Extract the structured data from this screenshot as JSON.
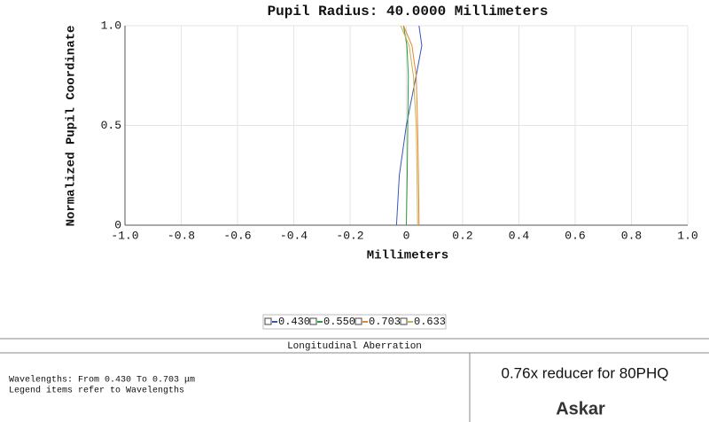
{
  "chart_data": {
    "type": "line",
    "title": "Pupil Radius: 40.0000 Millimeters",
    "x_label": "Millimeters",
    "y_label": "Normalized Pupil Coordinate",
    "y": [
      0,
      0.25,
      0.5,
      0.75,
      0.9,
      1.0
    ],
    "series": [
      {
        "name": "0.430",
        "color": "#3a55c0",
        "values": [
          -0.035,
          -0.025,
          0.0,
          0.035,
          0.055,
          0.045
        ]
      },
      {
        "name": "0.550",
        "color": "#2e9a3a",
        "values": [
          0.0,
          0.003,
          0.005,
          0.007,
          0.002,
          -0.01
        ]
      },
      {
        "name": "0.703",
        "color": "#e5862e",
        "values": [
          0.045,
          0.043,
          0.04,
          0.035,
          0.02,
          -0.01
        ]
      },
      {
        "name": "0.633",
        "color": "#c9b24a",
        "values": [
          0.04,
          0.038,
          0.035,
          0.025,
          0.01,
          -0.02
        ]
      }
    ],
    "xlim": [
      -1,
      1
    ],
    "xticks": [
      {
        "value": -1,
        "label": "-1.0"
      },
      {
        "value": -0.8,
        "label": "-0.8"
      },
      {
        "value": -0.6,
        "label": "-0.6"
      },
      {
        "value": -0.4,
        "label": "-0.4"
      },
      {
        "value": -0.2,
        "label": "-0.2"
      },
      0,
      0.2,
      0.4,
      0.6,
      0.8,
      {
        "value": 1,
        "label": "1.0"
      }
    ],
    "ylim": [
      0,
      1
    ],
    "yticks": [
      0,
      0.5,
      {
        "value": 1,
        "label": "1.0"
      }
    ],
    "grid": true
  },
  "footer": {
    "title": "Longitudinal Aberration",
    "notes": [
      "Wavelengths: From 0.430 To 0.703 μm",
      "Legend items refer to Wavelengths"
    ],
    "caption": "0.76x reducer for 80PHQ",
    "brand": "Askar"
  }
}
